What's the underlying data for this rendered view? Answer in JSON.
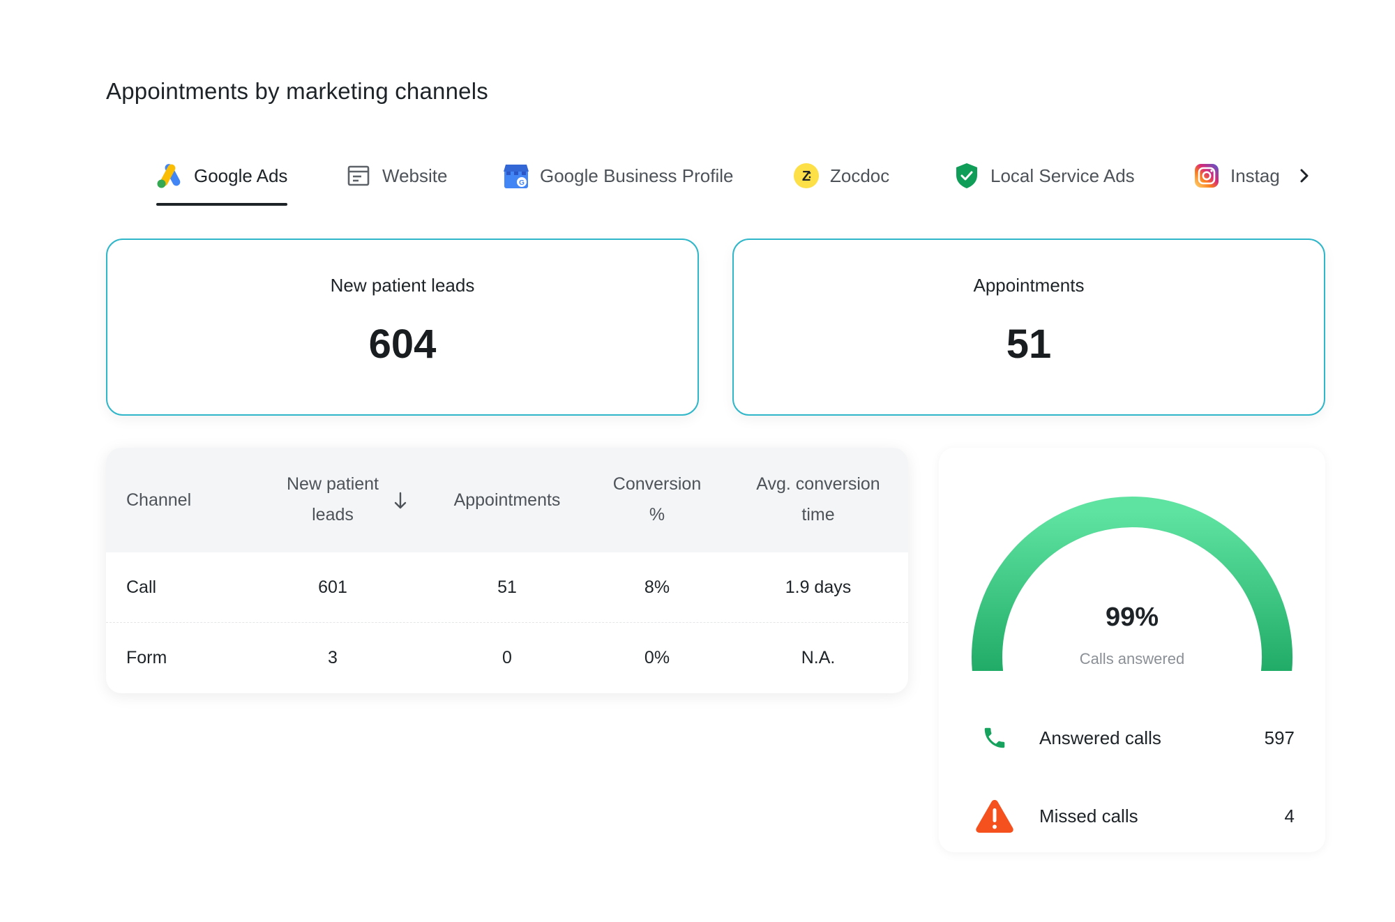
{
  "page": {
    "title": "Appointments by marketing channels"
  },
  "tabs": [
    {
      "label": "Google Ads",
      "icon": "google-ads-icon",
      "active": true
    },
    {
      "label": "Website",
      "icon": "website-icon",
      "active": false
    },
    {
      "label": "Google Business Profile",
      "icon": "google-business-profile-icon",
      "active": false
    },
    {
      "label": "Zocdoc",
      "icon": "zocdoc-icon",
      "active": false
    },
    {
      "label": "Local Service Ads",
      "icon": "local-service-ads-icon",
      "active": false
    },
    {
      "label": "Instag",
      "icon": "instagram-icon",
      "active": false
    }
  ],
  "kpis": {
    "leads": {
      "label": "New patient leads",
      "value": "604"
    },
    "appointments": {
      "label": "Appointments",
      "value": "51"
    }
  },
  "table": {
    "headers": {
      "channel": "Channel",
      "leads_line1": "New patient",
      "leads_line2": "leads",
      "appointments": "Appointments",
      "conversion_line1": "Conversion",
      "conversion_line2": "%",
      "avg_line1": "Avg. conversion",
      "avg_line2": "time"
    },
    "rows": [
      {
        "channel": "Call",
        "leads": "601",
        "appointments": "51",
        "conversion": "8%",
        "avg_time": "1.9 days"
      },
      {
        "channel": "Form",
        "leads": "3",
        "appointments": "0",
        "conversion": "0%",
        "avg_time": "N.A."
      }
    ]
  },
  "calls": {
    "answered_fraction": 0.99,
    "percent_label": "99%",
    "subtitle": "Calls answered",
    "answered": {
      "label": "Answered calls",
      "value": "597"
    },
    "missed": {
      "label": "Missed calls",
      "value": "4"
    }
  },
  "colors": {
    "accent_border": "#2fb6c8",
    "gauge_start": "#17a35e",
    "gauge_end": "#5fe3a1",
    "answered_icon": "#17a35e",
    "missed_icon": "#f4511e"
  }
}
